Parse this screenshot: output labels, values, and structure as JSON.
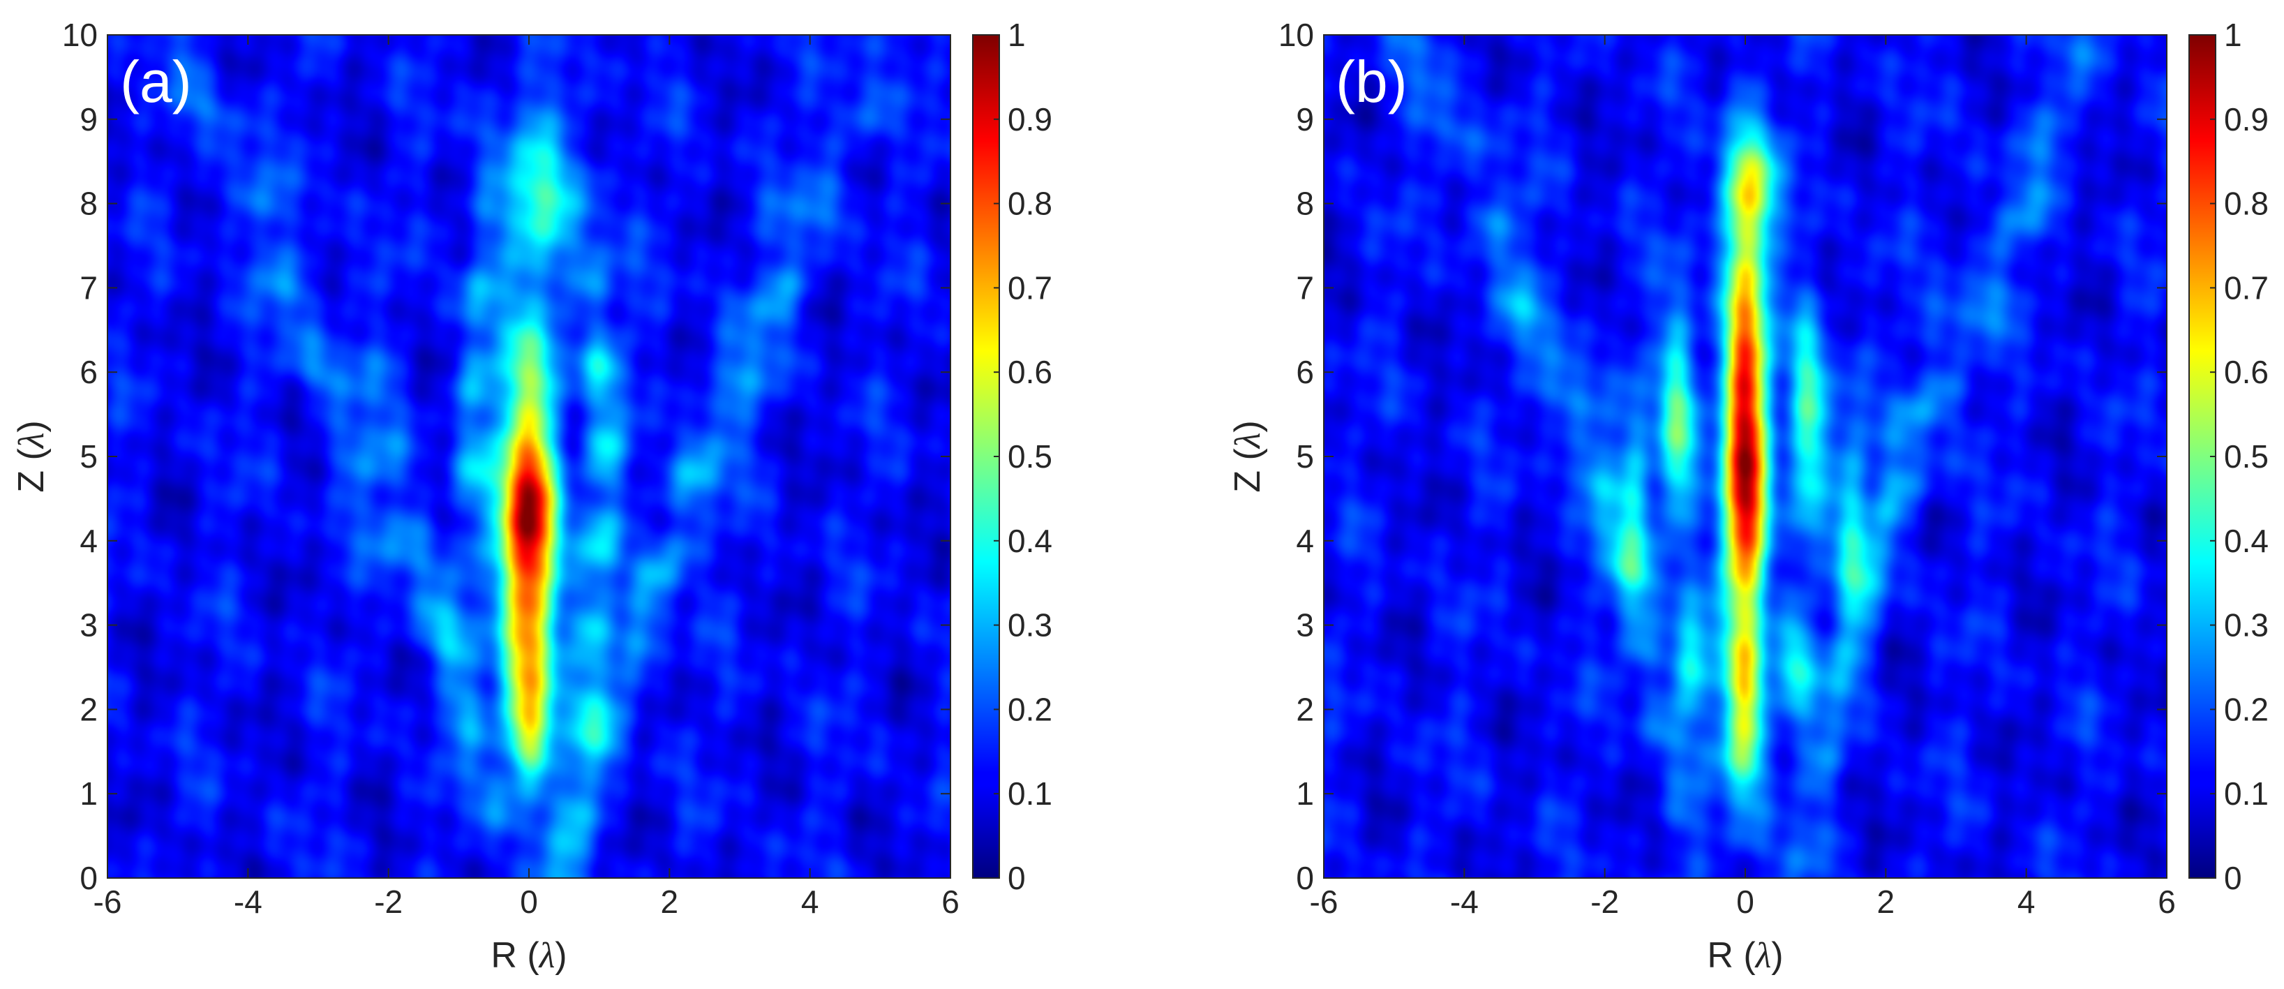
{
  "chart_data": [
    {
      "type": "heatmap",
      "panel_label": "(a)",
      "xlabel": {
        "text": "R (",
        "symbol": "λ",
        "suffix": ")"
      },
      "ylabel": {
        "text": "Z (",
        "symbol": "λ",
        "suffix": ")"
      },
      "xlim": [
        -6,
        6
      ],
      "ylim": [
        0,
        10
      ],
      "xticks": [
        -6,
        -4,
        -2,
        0,
        2,
        4,
        6
      ],
      "yticks": [
        0,
        1,
        2,
        3,
        4,
        5,
        6,
        7,
        8,
        9,
        10
      ],
      "colorbar": {
        "min": 0,
        "max": 1,
        "ticks": [
          0,
          0.1,
          0.2,
          0.3,
          0.4,
          0.5,
          0.6,
          0.7,
          0.8,
          0.9,
          1
        ],
        "colormap": "jet"
      },
      "background_level": 0.12,
      "features": [
        {
          "kind": "spot",
          "r": 0,
          "z": 4.3,
          "sr": 0.28,
          "sz": 0.95,
          "amp": 0.88
        },
        {
          "kind": "spot",
          "r": 0,
          "z": 2.4,
          "sr": 0.26,
          "sz": 0.7,
          "amp": 0.45
        },
        {
          "kind": "spot",
          "r": 0,
          "z": 1.6,
          "sr": 0.22,
          "sz": 0.35,
          "amp": 0.25
        },
        {
          "kind": "spot",
          "r": 0.15,
          "z": 8.0,
          "sr": 0.38,
          "sz": 0.8,
          "amp": 0.28
        },
        {
          "kind": "spot",
          "r": 0.05,
          "z": 6.1,
          "sr": 0.3,
          "sz": 0.4,
          "amp": 0.2
        },
        {
          "kind": "ridge",
          "r0": -0.75,
          "slope": 0.05,
          "zc": 6.0,
          "sz": 1.8,
          "w": 0.22,
          "amp": 0.2
        },
        {
          "kind": "ridge",
          "r0": 0.9,
          "slope": 0.1,
          "zc": 3.0,
          "sz": 2.2,
          "w": 0.22,
          "amp": 0.2
        },
        {
          "kind": "ridge",
          "r0": 0.95,
          "slope": -0.05,
          "zc": 6.4,
          "sz": 1.3,
          "w": 0.2,
          "amp": 0.18
        },
        {
          "kind": "ridge",
          "r0": -1.2,
          "slope": -0.35,
          "zc": 3.0,
          "sz": 3.0,
          "w": 0.25,
          "amp": 0.12
        },
        {
          "kind": "ridge",
          "r0": 1.6,
          "slope": 0.35,
          "zc": 3.0,
          "sz": 3.0,
          "w": 0.25,
          "amp": 0.12
        },
        {
          "kind": "ridge",
          "r0": -3.2,
          "slope": -0.5,
          "zc": 6.5,
          "sz": 3.5,
          "w": 0.3,
          "amp": 0.14
        },
        {
          "kind": "ridge",
          "r0": 3.4,
          "slope": 0.5,
          "zc": 6.5,
          "sz": 3.5,
          "w": 0.3,
          "amp": 0.14
        }
      ]
    },
    {
      "type": "heatmap",
      "panel_label": "(b)",
      "xlabel": {
        "text": "R (",
        "symbol": "λ",
        "suffix": ")"
      },
      "ylabel": {
        "text": "Z (",
        "symbol": "λ",
        "suffix": ")"
      },
      "xlim": [
        -6,
        6
      ],
      "ylim": [
        0,
        10
      ],
      "xticks": [
        -6,
        -4,
        -2,
        0,
        2,
        4,
        6
      ],
      "yticks": [
        0,
        1,
        2,
        3,
        4,
        5,
        6,
        7,
        8,
        9,
        10
      ],
      "colorbar": {
        "min": 0,
        "max": 1,
        "ticks": [
          0,
          0.1,
          0.2,
          0.3,
          0.4,
          0.5,
          0.6,
          0.7,
          0.8,
          0.9,
          1
        ],
        "colormap": "jet"
      },
      "background_level": 0.12,
      "features": [
        {
          "kind": "spot",
          "r": 0,
          "z": 5.3,
          "sr": 0.22,
          "sz": 1.9,
          "amp": 0.78
        },
        {
          "kind": "spot",
          "r": 0,
          "z": 4.2,
          "sr": 0.2,
          "sz": 0.6,
          "amp": 0.12
        },
        {
          "kind": "spot",
          "r": 0.05,
          "z": 8.2,
          "sr": 0.3,
          "sz": 0.45,
          "amp": 0.3
        },
        {
          "kind": "spot",
          "r": 0,
          "z": 1.6,
          "sr": 0.22,
          "sz": 0.45,
          "amp": 0.3
        },
        {
          "kind": "spot",
          "r": 0,
          "z": 2.4,
          "sr": 0.2,
          "sz": 0.35,
          "amp": 0.25
        },
        {
          "kind": "spot",
          "r": -0.95,
          "z": 5.4,
          "sr": 0.2,
          "sz": 1.0,
          "amp": 0.36
        },
        {
          "kind": "spot",
          "r": 0.9,
          "z": 5.4,
          "sr": 0.2,
          "sz": 1.0,
          "amp": 0.36
        },
        {
          "kind": "spot",
          "r": -0.75,
          "z": 2.6,
          "sr": 0.18,
          "sz": 0.5,
          "amp": 0.25
        },
        {
          "kind": "spot",
          "r": 0.7,
          "z": 2.6,
          "sr": 0.18,
          "sz": 0.5,
          "amp": 0.25
        },
        {
          "kind": "spot",
          "r": -1.55,
          "z": 4.4,
          "sr": 0.18,
          "sz": 0.9,
          "amp": 0.2
        },
        {
          "kind": "spot",
          "r": 1.5,
          "z": 4.4,
          "sr": 0.18,
          "sz": 0.9,
          "amp": 0.2
        },
        {
          "kind": "ridge",
          "r0": -1.6,
          "slope": -0.3,
          "zc": 3.0,
          "sz": 3.0,
          "w": 0.22,
          "amp": 0.12
        },
        {
          "kind": "ridge",
          "r0": 1.6,
          "slope": 0.3,
          "zc": 3.0,
          "sz": 3.0,
          "w": 0.22,
          "amp": 0.12
        },
        {
          "kind": "ridge",
          "r0": -3.0,
          "slope": -0.5,
          "zc": 6.5,
          "sz": 3.5,
          "w": 0.3,
          "amp": 0.14
        },
        {
          "kind": "ridge",
          "r0": 3.2,
          "slope": 0.5,
          "zc": 6.5,
          "sz": 3.5,
          "w": 0.3,
          "amp": 0.14
        }
      ]
    }
  ]
}
